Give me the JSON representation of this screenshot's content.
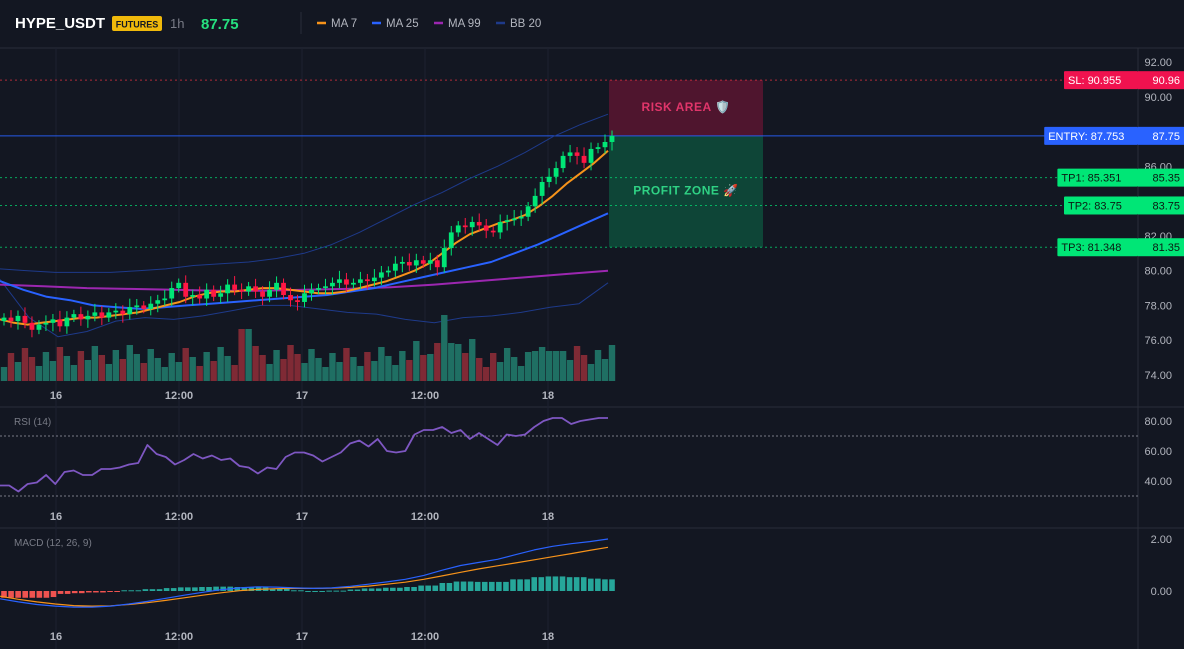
{
  "header": {
    "symbol": "HYPE_USDT",
    "badge": "FUTURES",
    "interval": "1h",
    "price": "87.75",
    "legend": [
      {
        "label": "MA 7",
        "color": "#f7931a"
      },
      {
        "label": "MA 25",
        "color": "#2962ff"
      },
      {
        "label": "MA 99",
        "color": "#9c27b0"
      },
      {
        "label": "BB 20",
        "color": "#1e3a8a"
      }
    ]
  },
  "colors": {
    "up": "#26a69a",
    "up_bright": "#00e676",
    "down": "#ef5350",
    "down_bright": "#ff1744",
    "background": "#131722",
    "grid": "#2a2e39",
    "entry": "#2962ff",
    "sl": "#f23645",
    "tp": "#00e676"
  },
  "chart_data": [
    {
      "type": "candlestick",
      "title": "",
      "x_tick_labels": [
        "16",
        "12:00",
        "17",
        "12:00",
        "18"
      ],
      "y_tick_labels": [
        "92.00",
        "90.00",
        "86.00",
        "82.00",
        "80.00",
        "78.00",
        "76.00",
        "74.00"
      ],
      "ylim": [
        73.5,
        92.8
      ],
      "close_path": [
        77.3,
        77.1,
        77.4,
        77.0,
        76.6,
        76.9,
        77.0,
        77.2,
        76.8,
        77.3,
        77.5,
        77.2,
        77.4,
        77.6,
        77.3,
        77.6,
        77.7,
        77.5,
        77.9,
        78.0,
        77.8,
        78.1,
        78.3,
        78.4,
        79.0,
        79.3,
        78.5,
        78.6,
        78.4,
        78.9,
        78.5,
        78.7,
        79.2,
        78.9,
        78.8,
        79.1,
        78.8,
        78.5,
        78.9,
        79.3,
        78.6,
        78.3,
        78.2,
        78.7,
        78.9,
        79.0,
        79.1,
        79.3,
        79.5,
        79.2,
        79.3,
        79.5,
        79.4,
        79.6,
        79.9,
        80.0,
        80.4,
        80.5,
        80.3,
        80.6,
        80.4,
        80.6,
        80.2,
        81.3,
        82.2,
        82.6,
        82.5,
        82.8,
        82.6,
        82.3,
        82.2,
        82.8,
        82.9,
        83.0,
        83.1,
        83.7,
        84.3,
        85.1,
        85.4,
        85.9,
        86.6,
        86.8,
        86.6,
        86.2,
        87.0,
        87.1,
        87.4,
        87.75
      ],
      "ma7": [
        77.2,
        77.0,
        76.9,
        77.0,
        77.1,
        77.2,
        77.3,
        77.3,
        77.4,
        77.5,
        77.6,
        77.8,
        78.0,
        78.2,
        78.5,
        78.7,
        78.8,
        78.8,
        78.9,
        79.0,
        79.0,
        78.9,
        78.8,
        78.7,
        78.7,
        78.8,
        79.0,
        79.2,
        79.4,
        79.7,
        80.0,
        80.4,
        81.0,
        81.6,
        82.1,
        82.4,
        82.7,
        82.9,
        83.2,
        83.7,
        84.3,
        85.0,
        85.6,
        86.2,
        86.9
      ],
      "ma25": [
        79.4,
        78.9,
        78.5,
        78.3,
        78.0,
        77.9,
        77.8,
        77.9,
        78.0,
        78.1,
        78.2,
        78.3,
        78.4,
        78.5,
        78.6,
        78.8,
        79.0,
        79.3,
        79.6,
        79.9,
        80.2,
        80.5,
        81.0,
        81.5,
        82.1,
        82.7,
        83.3
      ],
      "ma99": [
        79.2,
        79.1,
        79.0,
        78.95,
        78.9,
        78.85,
        78.85,
        78.9,
        78.95,
        79.05,
        79.2,
        79.4,
        79.6,
        79.8,
        80.0
      ],
      "bb_upper": [
        80.1,
        80.0,
        79.9,
        79.9,
        79.9,
        80.0,
        80.1,
        80.3,
        80.4,
        80.5,
        80.7,
        81.0,
        81.5,
        82.2,
        83.0,
        83.8,
        84.5,
        85.3,
        86.0,
        86.8,
        87.7,
        88.4,
        89.0
      ],
      "bb_lower": [
        79.5,
        77.3,
        76.2,
        76.5,
        77.1,
        77.3,
        77.2,
        77.4,
        77.7,
        78.0,
        78.0,
        77.8,
        77.6,
        77.5,
        77.2,
        77.0,
        77.3,
        77.4,
        77.6,
        77.9,
        78.1,
        79.3
      ]
    },
    {
      "type": "line",
      "title": "RSI (14)",
      "y_tick_labels": [
        "80.00",
        "60.00",
        "40.00"
      ],
      "ylim": [
        22,
        88
      ],
      "guides": [
        70,
        30
      ],
      "values": [
        37,
        37,
        33,
        38,
        39,
        44,
        38,
        46,
        47,
        44,
        44,
        48,
        48,
        49,
        51,
        52,
        64,
        58,
        56,
        51,
        54,
        58,
        55,
        57,
        54,
        55,
        50,
        49,
        45,
        49,
        48,
        56,
        59,
        59,
        57,
        53,
        56,
        59,
        65,
        67,
        63,
        68,
        60,
        59,
        60,
        71,
        74,
        74,
        76,
        72,
        74,
        68,
        72,
        68,
        64,
        71,
        70,
        71,
        76,
        80,
        82,
        82,
        78,
        80,
        81,
        82,
        82
      ]
    },
    {
      "type": "line+bar",
      "title": "MACD (12, 26, 9)",
      "y_tick_labels": [
        "2.00",
        "0.00"
      ],
      "ylim": [
        -1.2,
        2.3
      ],
      "macd": [
        -0.3,
        -0.42,
        -0.52,
        -0.58,
        -0.62,
        -0.62,
        -0.58,
        -0.5,
        -0.4,
        -0.28,
        -0.16,
        -0.05,
        0.05,
        0.12,
        0.16,
        0.15,
        0.12,
        0.1,
        0.12,
        0.18,
        0.26,
        0.35,
        0.45,
        0.6,
        0.8,
        0.98,
        1.1,
        1.22,
        1.4,
        1.58,
        1.72,
        1.82,
        1.9,
        2.0
      ],
      "signal": [
        -0.2,
        -0.32,
        -0.42,
        -0.5,
        -0.56,
        -0.58,
        -0.57,
        -0.52,
        -0.45,
        -0.36,
        -0.26,
        -0.16,
        -0.07,
        0.01,
        0.06,
        0.09,
        0.1,
        0.1,
        0.11,
        0.14,
        0.19,
        0.26,
        0.34,
        0.45,
        0.58,
        0.72,
        0.85,
        0.97,
        1.08,
        1.2,
        1.32,
        1.44,
        1.56,
        1.68
      ],
      "histogram_count": 87
    }
  ],
  "levels": [
    {
      "label": "SL: 90.955",
      "price_label": "90.96",
      "value": 90.955,
      "kind": "sl"
    },
    {
      "label": "ENTRY: 87.753",
      "price_label": "87.75",
      "value": 87.753,
      "kind": "entry"
    },
    {
      "label": "TP1: 85.351",
      "price_label": "85.35",
      "value": 85.351,
      "kind": "tp"
    },
    {
      "label": "TP2: 83.75",
      "price_label": "83.75",
      "value": 83.75,
      "kind": "tp"
    },
    {
      "label": "TP3: 81.348",
      "price_label": "81.35",
      "value": 81.348,
      "kind": "tp"
    }
  ],
  "zones": {
    "risk_label": "RISK AREA 🛡️",
    "profit_label": "PROFIT ZONE 🚀"
  }
}
